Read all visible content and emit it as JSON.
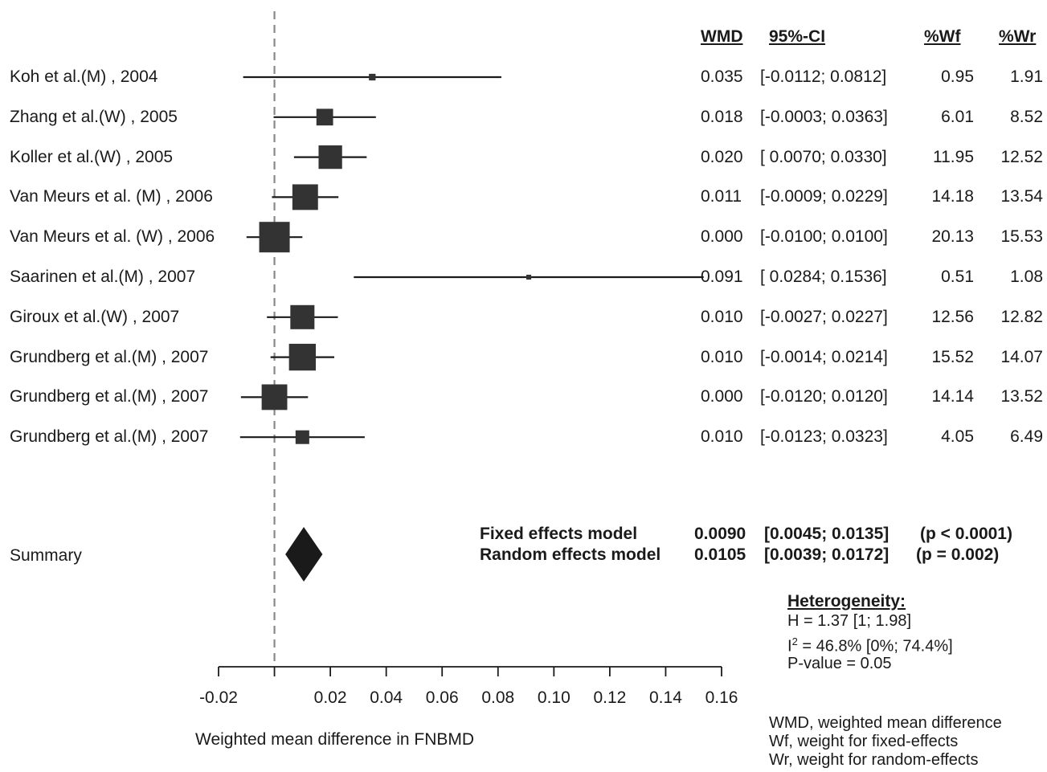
{
  "chart_data": {
    "type": "forest",
    "columns": [
      "WMD",
      "95%-CI",
      "%Wf",
      "%Wr"
    ],
    "studies": [
      {
        "label": "Koh et al.(M) , 2004",
        "wmd": 0.035,
        "wmd_text": "0.035",
        "ci_low": -0.0112,
        "ci_high": 0.0812,
        "ci_text": "[-0.0112; 0.0812]",
        "wf": "0.95",
        "wr": "1.91"
      },
      {
        "label": "Zhang et al.(W) , 2005",
        "wmd": 0.018,
        "wmd_text": "0.018",
        "ci_low": -0.0003,
        "ci_high": 0.0363,
        "ci_text": "[-0.0003; 0.0363]",
        "wf": "6.01",
        "wr": "8.52"
      },
      {
        "label": "Koller et al.(W) , 2005",
        "wmd": 0.02,
        "wmd_text": "0.020",
        "ci_low": 0.007,
        "ci_high": 0.033,
        "ci_text": "[ 0.0070; 0.0330]",
        "wf": "11.95",
        "wr": "12.52"
      },
      {
        "label": "Van Meurs et al. (M) , 2006",
        "wmd": 0.011,
        "wmd_text": "0.011",
        "ci_low": -0.0009,
        "ci_high": 0.0229,
        "ci_text": "[-0.0009; 0.0229]",
        "wf": "14.18",
        "wr": "13.54"
      },
      {
        "label": "Van Meurs et al. (W) , 2006",
        "wmd": 0.0,
        "wmd_text": "0.000",
        "ci_low": -0.01,
        "ci_high": 0.01,
        "ci_text": "[-0.0100; 0.0100]",
        "wf": "20.13",
        "wr": "15.53"
      },
      {
        "label": "Saarinen et al.(M) , 2007",
        "wmd": 0.091,
        "wmd_text": "0.091",
        "ci_low": 0.0284,
        "ci_high": 0.1536,
        "ci_text": "[ 0.0284; 0.1536]",
        "wf": "0.51",
        "wr": "1.08"
      },
      {
        "label": "Giroux et al.(W) , 2007",
        "wmd": 0.01,
        "wmd_text": "0.010",
        "ci_low": -0.0027,
        "ci_high": 0.0227,
        "ci_text": "[-0.0027; 0.0227]",
        "wf": "12.56",
        "wr": "12.82"
      },
      {
        "label": "Grundberg et al.(M) , 2007",
        "wmd": 0.01,
        "wmd_text": "0.010",
        "ci_low": -0.0014,
        "ci_high": 0.0214,
        "ci_text": "[-0.0014; 0.0214]",
        "wf": "15.52",
        "wr": "14.07"
      },
      {
        "label": "Grundberg et al.(M) , 2007",
        "wmd": 0.0,
        "wmd_text": "0.000",
        "ci_low": -0.012,
        "ci_high": 0.012,
        "ci_text": "[-0.0120; 0.0120]",
        "wf": "14.14",
        "wr": "13.52"
      },
      {
        "label": "Grundberg et al.(M) , 2007",
        "wmd": 0.01,
        "wmd_text": "0.010",
        "ci_low": -0.0123,
        "ci_high": 0.0323,
        "ci_text": "[-0.0123; 0.0323]",
        "wf": "4.05",
        "wr": "6.49"
      }
    ],
    "summary": {
      "label": "Summary",
      "fixed": {
        "name": "Fixed effects model",
        "estimate": 0.009,
        "estimate_text": "0.0090",
        "ci_low": 0.0045,
        "ci_high": 0.0135,
        "ci_text": "[0.0045; 0.0135]",
        "p_text": "(p < 0.0001)"
      },
      "random": {
        "name": "Random effects model",
        "estimate": 0.0105,
        "estimate_text": "0.0105",
        "ci_low": 0.0039,
        "ci_high": 0.0172,
        "ci_text": "[0.0039; 0.0172]",
        "p_text": "(p = 0.002)"
      }
    },
    "heterogeneity": {
      "title": "Heterogeneity:",
      "h_text": "H = 1.37 [1; 1.98]",
      "i2_prefix": "I",
      "i2_sup": "2",
      "i2_rest": " = 46.8% [0%; 74.4%]",
      "p_text": "P-value = 0.05"
    },
    "footnotes": [
      "WMD, weighted mean difference",
      "Wf, weight for fixed-effects",
      "Wr, weight for random-effects"
    ],
    "xlabel": "Weighted mean difference in FNBMD",
    "xlim": [
      -0.02,
      0.16
    ],
    "xticks": [
      -0.02,
      0,
      0.02,
      0.04,
      0.06,
      0.08,
      0.1,
      0.12,
      0.14,
      0.16
    ],
    "xtick_labels": [
      "-0.02",
      "",
      "0.02",
      "0.04",
      "0.06",
      "0.08",
      "0.10",
      "0.12",
      "0.14",
      "0.16"
    ],
    "reference_line": 0,
    "colors": {
      "marker": "#333333",
      "ink": "#1a1a1a",
      "reference": "#888888"
    }
  }
}
